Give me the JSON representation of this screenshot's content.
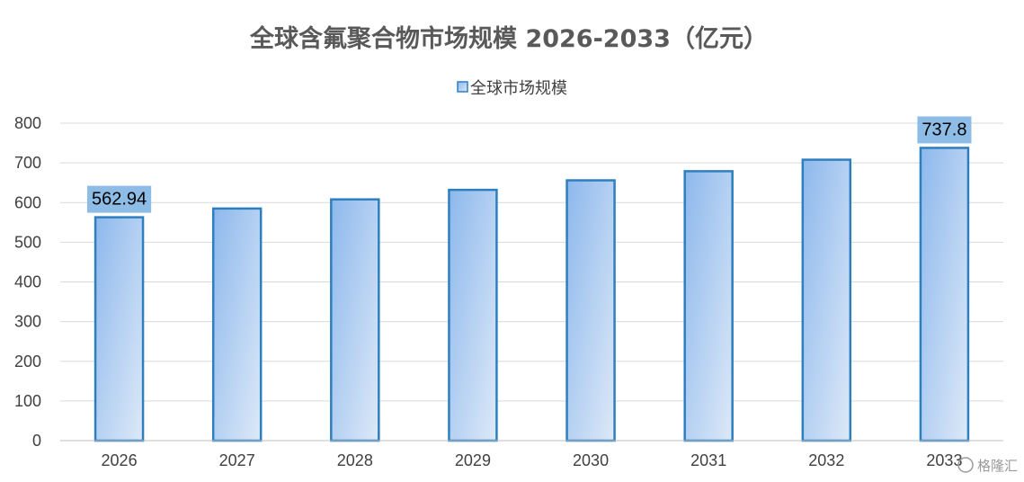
{
  "chart_data": {
    "type": "bar",
    "title": "全球含氟聚合物市场规模 2026-2033（亿元）",
    "xlabel": "",
    "ylabel": "",
    "categories": [
      "2026",
      "2027",
      "2028",
      "2029",
      "2030",
      "2031",
      "2032",
      "2033"
    ],
    "series": [
      {
        "name": "全球市场规模",
        "values": [
          562.94,
          585,
          608,
          632,
          656,
          679,
          708,
          737.8
        ]
      }
    ],
    "data_labels": [
      {
        "category": "2026",
        "text": "562.94"
      },
      {
        "category": "2033",
        "text": "737.8"
      }
    ],
    "ylim": [
      0,
      800
    ],
    "yticks": [
      0,
      100,
      200,
      300,
      400,
      500,
      600,
      700,
      800
    ],
    "grid": true,
    "legend_position": "top",
    "colors": {
      "bar_gradient_start": "#8db8ec",
      "bar_gradient_end": "#dde9f8",
      "bar_border": "#2e7fbf",
      "label_background": "#8dbde6",
      "gridline": "#d9d9d9",
      "axis_line": "#bfbfbf"
    }
  },
  "watermark": {
    "text": "格隆汇"
  }
}
